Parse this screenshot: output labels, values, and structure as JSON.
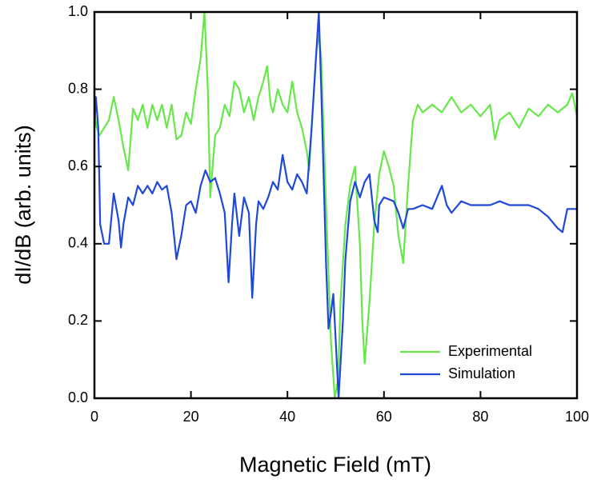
{
  "chart_data": {
    "type": "line",
    "x_label": "Magnetic Field (mT)",
    "y_label": "dI/dB (arb. units)",
    "xlim": [
      0,
      100
    ],
    "xticks": [
      0,
      20,
      40,
      60,
      80,
      100
    ],
    "ylim": [
      0,
      1
    ],
    "yticks": [
      {
        "value": 0,
        "label": "0.0"
      },
      0.2,
      0.4,
      0.6,
      0.8,
      {
        "value": 1,
        "label": "1.0"
      }
    ],
    "legend": "lower right",
    "series": [
      {
        "name": "Experimental",
        "color": "#66e84a",
        "x": [
          0,
          0.5,
          1,
          2,
          3,
          4,
          5,
          6,
          7,
          8,
          9,
          10,
          11,
          12,
          13,
          14,
          15,
          16,
          17,
          18,
          19,
          20,
          21,
          22,
          22.8,
          23.5,
          24,
          25,
          26,
          27,
          28,
          29,
          30,
          31,
          32,
          33,
          34,
          35,
          35.8,
          36.5,
          37,
          38,
          39,
          40,
          41,
          42,
          43,
          44,
          44.5,
          45,
          46,
          46.5,
          47,
          48,
          49,
          49.8,
          50.5,
          51,
          52,
          53,
          54,
          55,
          55.5,
          56,
          57,
          58,
          59,
          60,
          61,
          62,
          63,
          64,
          65,
          66,
          67,
          68,
          70,
          72,
          74,
          76,
          78,
          80,
          82,
          83,
          84,
          86,
          88,
          90,
          92,
          94,
          96,
          98,
          99,
          100
        ],
        "values": [
          0.74,
          0.7,
          0.68,
          0.7,
          0.72,
          0.78,
          0.72,
          0.65,
          0.59,
          0.75,
          0.72,
          0.76,
          0.7,
          0.76,
          0.72,
          0.76,
          0.7,
          0.76,
          0.67,
          0.68,
          0.74,
          0.71,
          0.8,
          0.88,
          1.0,
          0.8,
          0.52,
          0.68,
          0.7,
          0.76,
          0.73,
          0.82,
          0.8,
          0.74,
          0.78,
          0.72,
          0.78,
          0.82,
          0.86,
          0.76,
          0.74,
          0.8,
          0.76,
          0.74,
          0.82,
          0.74,
          0.7,
          0.64,
          0.59,
          0.7,
          0.9,
          0.94,
          0.88,
          0.5,
          0.15,
          0.0,
          0.05,
          0.25,
          0.45,
          0.55,
          0.6,
          0.4,
          0.2,
          0.09,
          0.25,
          0.45,
          0.58,
          0.64,
          0.6,
          0.55,
          0.42,
          0.35,
          0.55,
          0.72,
          0.76,
          0.74,
          0.76,
          0.74,
          0.78,
          0.74,
          0.76,
          0.73,
          0.76,
          0.67,
          0.72,
          0.74,
          0.7,
          0.75,
          0.73,
          0.76,
          0.74,
          0.76,
          0.79,
          0.73
        ]
      },
      {
        "name": "Simulation",
        "color": "#1f48d8",
        "x": [
          0,
          0.3,
          0.8,
          1.2,
          2,
          3,
          4,
          5,
          5.5,
          6,
          7,
          8,
          9,
          10,
          11,
          12,
          13,
          14,
          15,
          16,
          17,
          18,
          19,
          20,
          21,
          22,
          23,
          24,
          25,
          26,
          27,
          27.8,
          28.5,
          29,
          30,
          31,
          32,
          32.7,
          33.5,
          34,
          35,
          36,
          37,
          38,
          39,
          40,
          41,
          42,
          43,
          44,
          45,
          46,
          46.5,
          47,
          48,
          48.5,
          49,
          49.5,
          50,
          50.6,
          51.5,
          52,
          53,
          54,
          55,
          56,
          57,
          58,
          58.7,
          59,
          60,
          62,
          63,
          64,
          65,
          66,
          68,
          70,
          72,
          73,
          74,
          76,
          78,
          80,
          82,
          84,
          86,
          88,
          90,
          92,
          94,
          96,
          97,
          98,
          100
        ],
        "values": [
          0.7,
          0.78,
          0.7,
          0.45,
          0.4,
          0.4,
          0.53,
          0.46,
          0.39,
          0.45,
          0.52,
          0.5,
          0.55,
          0.53,
          0.55,
          0.53,
          0.56,
          0.54,
          0.55,
          0.48,
          0.36,
          0.42,
          0.5,
          0.51,
          0.48,
          0.55,
          0.59,
          0.56,
          0.57,
          0.53,
          0.48,
          0.3,
          0.45,
          0.53,
          0.42,
          0.52,
          0.48,
          0.26,
          0.45,
          0.51,
          0.49,
          0.52,
          0.56,
          0.54,
          0.63,
          0.56,
          0.54,
          0.58,
          0.56,
          0.53,
          0.7,
          0.9,
          1.0,
          0.8,
          0.35,
          0.18,
          0.22,
          0.27,
          0.15,
          0.0,
          0.2,
          0.36,
          0.51,
          0.56,
          0.52,
          0.56,
          0.58,
          0.46,
          0.43,
          0.5,
          0.52,
          0.51,
          0.48,
          0.44,
          0.49,
          0.49,
          0.5,
          0.49,
          0.55,
          0.5,
          0.48,
          0.51,
          0.5,
          0.5,
          0.5,
          0.51,
          0.5,
          0.5,
          0.5,
          0.49,
          0.47,
          0.44,
          0.43,
          0.49,
          0.49
        ]
      }
    ]
  }
}
